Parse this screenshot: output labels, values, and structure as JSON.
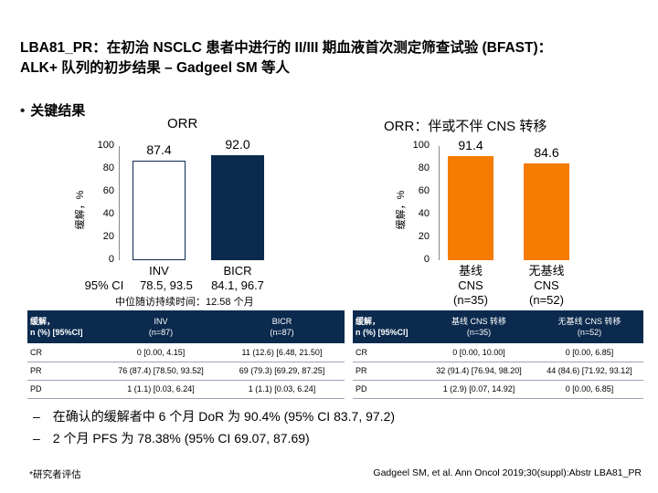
{
  "slide": {
    "title_line1": "LBA81_PR：在初治 NSCLC 患者中进行的 II/III 期血液首次测定筛查试验 (BFAST)：",
    "title_line2": "ALK+ 队列的初步结果 – Gadgeel SM 等人",
    "bullet": "关键结果",
    "bullet_marker": "•"
  },
  "chart_data": [
    {
      "type": "bar",
      "title": "ORR",
      "ylabel": "缓解，%",
      "ylim": [
        0,
        100
      ],
      "yticks": [
        "0",
        "20",
        "40",
        "60",
        "80",
        "100"
      ],
      "categories": [
        "INV",
        "BICR"
      ],
      "values": [
        87.4,
        92.0
      ],
      "value_labels": [
        "87.4",
        "92.0"
      ],
      "ci_prefix": "95% CI",
      "ci": [
        "78.5, 93.5",
        "84.1, 96.7"
      ],
      "colors": [
        "#ffffff",
        "#0b2a4e"
      ],
      "note": "中位随访持续时间：12.58 个月"
    },
    {
      "type": "bar",
      "title": "ORR：伴或不伴 CNS 转移",
      "ylabel": "缓解，%",
      "ylim": [
        0,
        100
      ],
      "yticks": [
        "0",
        "20",
        "40",
        "60",
        "80",
        "100"
      ],
      "categories": [
        "基线\nCNS\n(n=35)",
        "无基线\nCNS\n(n=52)"
      ],
      "category_lines": [
        [
          "基线",
          "CNS",
          "(n=35)"
        ],
        [
          "无基线",
          "CNS",
          "(n=52)"
        ]
      ],
      "values": [
        91.4,
        84.6
      ],
      "value_labels": [
        "91.4",
        "84.6"
      ],
      "colors": [
        "#f57c00",
        "#f57c00"
      ]
    }
  ],
  "table_left": {
    "header": [
      "缓解，\nn (%) [95%CI]",
      "INV\n(n=87)",
      "BICR\n(n=87)"
    ],
    "rows": [
      [
        "CR",
        "0 [0.00, 4.15]",
        "11 (12.6) [6.48, 21.50]"
      ],
      [
        "PR",
        "76 (87.4) [78.50, 93.52]",
        "69 (79.3) [69.29, 87.25]"
      ],
      [
        "PD",
        "1 (1.1) [0.03, 6.24]",
        "1 (1.1) [0.03, 6.24]"
      ]
    ]
  },
  "table_right": {
    "header": [
      "缓解，\nn (%) [95%CI]",
      "基线 CNS 转移\n(n=35)",
      "无基线 CNS 转移\n(n=52)"
    ],
    "rows": [
      [
        "CR",
        "0 [0.00, 10.00]",
        "0 [0.00, 6.85]"
      ],
      [
        "PR",
        "32 (91.4) [76.94, 98.20]",
        "44 (84.6) [71.92, 93.12]"
      ],
      [
        "PD",
        "1 (2.9) [0.07, 14.92]",
        "0 [0.00, 6.85]"
      ]
    ]
  },
  "notes": {
    "dash": "–",
    "items": [
      "在确认的缓解者中 6 个月 DoR 为 90.4% (95% CI 83.7, 97.2)",
      "2 个月 PFS 为 78.38% (95% CI 69.07, 87.69)"
    ]
  },
  "footer": {
    "left": "*研究者评估",
    "right": "Gadgeel SM, et al. Ann Oncol 2019;30(suppl):Abstr LBA81_PR"
  }
}
